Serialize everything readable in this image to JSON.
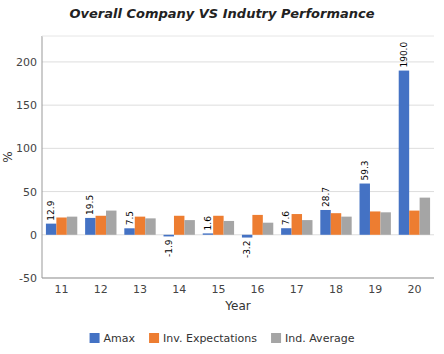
{
  "chart_data": {
    "type": "bar",
    "title": "Overall Company VS Indutry Performance",
    "x_label": "Year",
    "y_label": "%",
    "categories": [
      "11",
      "12",
      "13",
      "14",
      "15",
      "16",
      "17",
      "18",
      "19",
      "20"
    ],
    "series": [
      {
        "name": "Amax",
        "color": "#4472c4",
        "data_labels": true,
        "values": [
          12.9,
          19.5,
          7.5,
          -1.9,
          1.6,
          -3.2,
          7.6,
          28.7,
          59.3,
          190.0
        ],
        "value_labels": [
          "12.9",
          "19.5",
          "7.5",
          "-1.9",
          "1.6",
          "-3.2",
          "7.6",
          "28.7",
          "59.3",
          "190.0"
        ]
      },
      {
        "name": "Inv. Expectations",
        "color": "#ed7d31",
        "values": [
          20.0,
          22.0,
          21.0,
          22.0,
          22.0,
          23.0,
          24.0,
          25.0,
          27.0,
          28.0
        ]
      },
      {
        "name": "Ind. Average",
        "color": "#a5a5a5",
        "values": [
          21.0,
          28.0,
          19.0,
          17.0,
          16.0,
          14.0,
          17.0,
          21.0,
          26.0,
          43.0
        ]
      }
    ],
    "ylim": [
      -50,
      230
    ],
    "yticks": [
      -50,
      0,
      50,
      100,
      150,
      200
    ],
    "grid": true,
    "legend": "bottom"
  }
}
